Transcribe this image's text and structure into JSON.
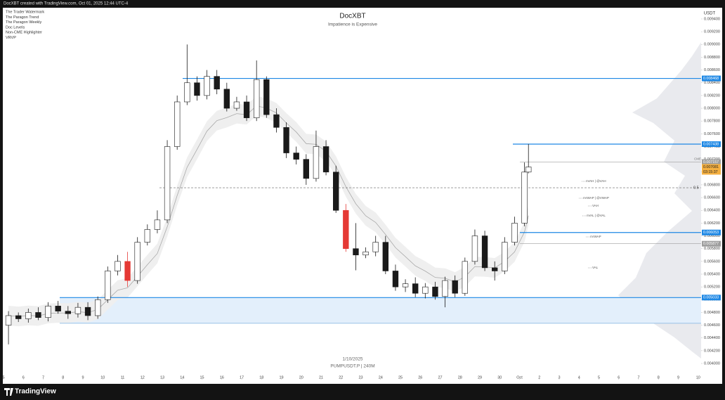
{
  "header": {
    "caption": "DocXBT created with TradingView.com, Oct 01, 2025 12:44 UTC-4",
    "indicators": [
      "The Trader Watermark",
      "The Paragon Trend",
      "The Paragon Weekly",
      "Doc Levels",
      "Non-CME Highlighter",
      "VRVP"
    ],
    "currency": "USDT",
    "brand": "TradingView"
  },
  "chart_data": {
    "type": "candlestick",
    "title": "DocXBT",
    "subtitle": "Impatience is Expensive",
    "watermark": [
      "1/10/2025",
      "PUMPUSDT.P | 240M"
    ],
    "up_color": "#ffffff",
    "down_color": "#1a1a1a",
    "outline_color": "#1a1a1a",
    "highlight_color": "#e53935",
    "highlighted": [
      12,
      34
    ],
    "x": [
      0.25,
      0.75,
      1.25,
      1.75,
      2.25,
      2.75,
      3.25,
      3.75,
      4.25,
      4.75,
      5.25,
      5.75,
      6.25,
      6.75,
      7.25,
      7.75,
      8.25,
      8.75,
      9.25,
      9.75,
      10.25,
      10.75,
      11.25,
      11.75,
      12.25,
      12.75,
      13.25,
      13.75,
      14.25,
      14.75,
      15.25,
      15.75,
      16.25,
      16.75,
      17.25,
      17.75,
      18.25,
      18.75,
      19.25,
      19.75,
      20.25,
      20.75,
      21.25,
      21.75,
      22.25,
      22.75,
      23.25,
      23.75,
      24.25,
      24.75,
      25.25,
      25.75,
      26.25,
      26.45
    ],
    "open": [
      0.0046,
      0.00475,
      0.0047,
      0.0048,
      0.00472,
      0.0049,
      0.00482,
      0.00478,
      0.00488,
      0.00475,
      0.005,
      0.00545,
      0.0056,
      0.0053,
      0.0059,
      0.0061,
      0.00625,
      0.0074,
      0.0081,
      0.0084,
      0.0082,
      0.0085,
      0.0083,
      0.008,
      0.0081,
      0.00785,
      0.00845,
      0.0079,
      0.0077,
      0.0073,
      0.0072,
      0.0069,
      0.0074,
      0.007,
      0.0064,
      0.0058,
      0.0057,
      0.00575,
      0.0059,
      0.00545,
      0.0052,
      0.00525,
      0.0051,
      0.0052,
      0.00505,
      0.0053,
      0.0051,
      0.0056,
      0.006,
      0.0055,
      0.00545,
      0.0059,
      0.0062,
      0.007
    ],
    "high": [
      0.00482,
      0.0048,
      0.00486,
      0.00488,
      0.00496,
      0.00498,
      0.0049,
      0.00495,
      0.00496,
      0.00505,
      0.00552,
      0.0057,
      0.00575,
      0.00598,
      0.00618,
      0.0064,
      0.0075,
      0.0082,
      0.009,
      0.0085,
      0.0086,
      0.0086,
      0.0084,
      0.00818,
      0.0082,
      0.00875,
      0.0085,
      0.008,
      0.00778,
      0.0074,
      0.00728,
      0.00765,
      0.0075,
      0.0071,
      0.0065,
      0.0062,
      0.00582,
      0.006,
      0.006,
      0.00555,
      0.00532,
      0.00535,
      0.00526,
      0.00528,
      0.00536,
      0.00538,
      0.00566,
      0.0061,
      0.00608,
      0.0056,
      0.00598,
      0.0063,
      0.00715,
      0.00744
    ],
    "low": [
      0.0043,
      0.00465,
      0.00464,
      0.00468,
      0.00466,
      0.00478,
      0.0047,
      0.00472,
      0.00468,
      0.0047,
      0.00495,
      0.00538,
      0.0052,
      0.00525,
      0.00585,
      0.00604,
      0.0062,
      0.00735,
      0.00805,
      0.00812,
      0.00814,
      0.00822,
      0.00795,
      0.00796,
      0.0078,
      0.0078,
      0.00785,
      0.00762,
      0.00722,
      0.00712,
      0.0068,
      0.00685,
      0.00695,
      0.00636,
      0.00575,
      0.00546,
      0.00565,
      0.00568,
      0.0054,
      0.00514,
      0.00512,
      0.00504,
      0.00502,
      0.005,
      0.00488,
      0.00504,
      0.00506,
      0.00555,
      0.00545,
      0.0053,
      0.0054,
      0.00585,
      0.00615,
      0.00698
    ],
    "close": [
      0.00475,
      0.0047,
      0.0048,
      0.00472,
      0.0049,
      0.00482,
      0.00478,
      0.00488,
      0.00475,
      0.005,
      0.00545,
      0.0056,
      0.0053,
      0.0059,
      0.0061,
      0.00625,
      0.0074,
      0.0081,
      0.0084,
      0.0082,
      0.0085,
      0.0083,
      0.008,
      0.0081,
      0.00785,
      0.00845,
      0.0079,
      0.0077,
      0.0073,
      0.0072,
      0.0069,
      0.0074,
      0.007,
      0.0064,
      0.0058,
      0.0057,
      0.00575,
      0.0059,
      0.00545,
      0.0052,
      0.00525,
      0.0051,
      0.0052,
      0.00505,
      0.0053,
      0.0051,
      0.0056,
      0.006,
      0.0055,
      0.00545,
      0.0059,
      0.0062,
      0.007,
      0.00708
    ],
    "xlim": [
      0,
      35.15
    ],
    "ylim": [
      0.003747,
      0.009565
    ],
    "xticks": [
      {
        "value": 0,
        "label": "5"
      },
      {
        "value": 1,
        "label": "6"
      },
      {
        "value": 2,
        "label": "7"
      },
      {
        "value": 3,
        "label": "8"
      },
      {
        "value": 4,
        "label": "9"
      },
      {
        "value": 5,
        "label": "10"
      },
      {
        "value": 6,
        "label": "11"
      },
      {
        "value": 7,
        "label": "12"
      },
      {
        "value": 8,
        "label": "13"
      },
      {
        "value": 9,
        "label": "14"
      },
      {
        "value": 10,
        "label": "15"
      },
      {
        "value": 11,
        "label": "16"
      },
      {
        "value": 12,
        "label": "17"
      },
      {
        "value": 13,
        "label": "18"
      },
      {
        "value": 14,
        "label": "19"
      },
      {
        "value": 15,
        "label": "20"
      },
      {
        "value": 16,
        "label": "21"
      },
      {
        "value": 17,
        "label": "22"
      },
      {
        "value": 18,
        "label": "23"
      },
      {
        "value": 19,
        "label": "24"
      },
      {
        "value": 20,
        "label": "25"
      },
      {
        "value": 21,
        "label": "26"
      },
      {
        "value": 22,
        "label": "27"
      },
      {
        "value": 23,
        "label": "28"
      },
      {
        "value": 24,
        "label": "29"
      },
      {
        "value": 25,
        "label": "30"
      },
      {
        "value": 26,
        "label": "Oct"
      },
      {
        "value": 27,
        "label": "2"
      },
      {
        "value": 28,
        "label": "3"
      },
      {
        "value": 29,
        "label": "4"
      },
      {
        "value": 30,
        "label": "5"
      },
      {
        "value": 31,
        "label": "6"
      },
      {
        "value": 32,
        "label": "7"
      },
      {
        "value": 33,
        "label": "8"
      },
      {
        "value": 34,
        "label": "9"
      },
      {
        "value": 35,
        "label": "10"
      }
    ],
    "yticks": [
      {
        "value": 0.004,
        "label": "0.004000"
      },
      {
        "value": 0.0042,
        "label": "0.004200"
      },
      {
        "value": 0.0044,
        "label": "0.004400"
      },
      {
        "value": 0.0046,
        "label": "0.004600"
      },
      {
        "value": 0.0048,
        "label": "0.004800"
      },
      {
        "value": 0.005,
        "label": "0.005000"
      },
      {
        "value": 0.0052,
        "label": "0.005200"
      },
      {
        "value": 0.0054,
        "label": "0.005400"
      },
      {
        "value": 0.0056,
        "label": "0.005600"
      },
      {
        "value": 0.0058,
        "label": "0.005800"
      },
      {
        "value": 0.006,
        "label": "0.006000"
      },
      {
        "value": 0.0062,
        "label": "0.006200"
      },
      {
        "value": 0.0064,
        "label": "0.006400"
      },
      {
        "value": 0.0066,
        "label": "0.006600"
      },
      {
        "value": 0.0068,
        "label": "0.006800"
      },
      {
        "value": 0.007,
        "label": "0.007000"
      },
      {
        "value": 0.0072,
        "label": "0.007200"
      },
      {
        "value": 0.0074,
        "label": "0.007400"
      },
      {
        "value": 0.0076,
        "label": "0.007600"
      },
      {
        "value": 0.0078,
        "label": "0.007800"
      },
      {
        "value": 0.008,
        "label": "0.008000"
      },
      {
        "value": 0.0082,
        "label": "0.008200"
      },
      {
        "value": 0.0084,
        "label": "0.008400"
      },
      {
        "value": 0.0086,
        "label": "0.008600"
      },
      {
        "value": 0.0088,
        "label": "0.008800"
      },
      {
        "value": 0.009,
        "label": "0.009000"
      },
      {
        "value": 0.0092,
        "label": "0.009200"
      },
      {
        "value": 0.0094,
        "label": "0.009400"
      }
    ],
    "levels": [
      {
        "value": 0.008468,
        "label": "0.008468",
        "color": "#1e88e5"
      },
      {
        "value": 0.007438,
        "label": "0.007438",
        "color": "#1e88e5"
      },
      {
        "value": 0.006053,
        "label": "0.006053",
        "color": "#1e88e5"
      },
      {
        "value": 0.005033,
        "label": "0.005033",
        "color": "#1e88e5"
      },
      {
        "value": 0.007157,
        "label": "0.007157",
        "color": "#9e9e9e"
      },
      {
        "value": 0.005877,
        "label": "0.005877",
        "color": "#9e9e9e"
      }
    ],
    "zone_low": 0.00463,
    "mid_level": {
      "value": 0.006755,
      "label": "0.5"
    },
    "last_price": {
      "value": 0.007081,
      "label": "0.007081",
      "countdown": "03:15:37",
      "color": "#f5b041"
    },
    "cme_label": "CME",
    "annotations": [
      "nVAH | @VAH",
      "nVWAP | @VWAP",
      "VAH",
      "nVAL | @VAL",
      "nVWAP",
      "VAL"
    ]
  }
}
